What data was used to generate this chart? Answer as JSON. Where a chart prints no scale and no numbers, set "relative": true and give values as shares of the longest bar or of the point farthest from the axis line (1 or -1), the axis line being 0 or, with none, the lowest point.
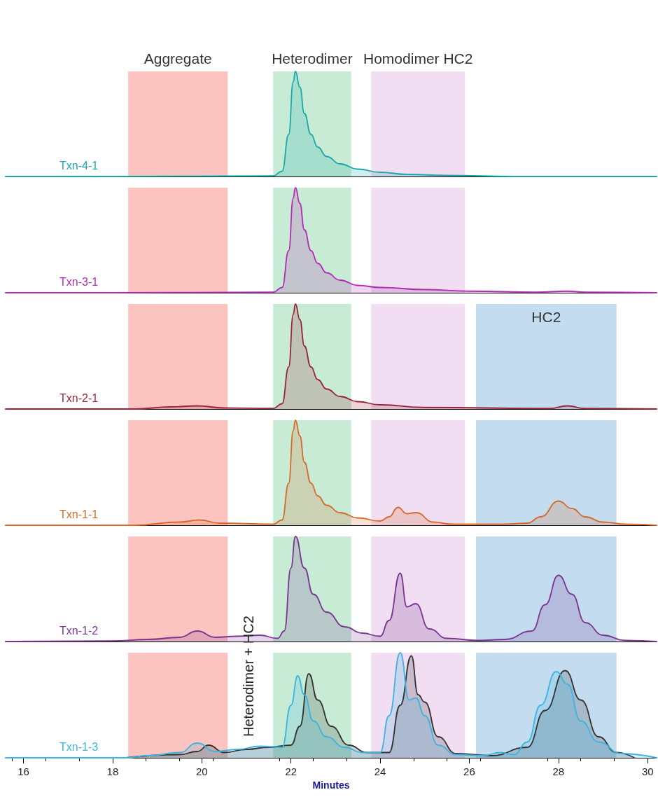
{
  "chart_data": [
    {
      "type": "area",
      "relative": true,
      "marker": "none",
      "xlim": [
        15.6,
        30.2
      ],
      "tick_labels": false,
      "bands": [
        {
          "axis": "x",
          "from": 18.35,
          "to": 20.58,
          "label": "Aggregate",
          "color": "#fbc4c0"
        },
        {
          "axis": "x",
          "from": 21.6,
          "to": 23.35,
          "label": "Heterodimer",
          "color": "#c8ebd6"
        },
        {
          "axis": "x",
          "from": 23.8,
          "to": 25.9,
          "label": "Homodimer HC2",
          "color": "#f1def2"
        }
      ],
      "series": [
        {
          "name": "Txn-4-1",
          "color": "#1aa8a8",
          "x": [
            15.6,
            18,
            21.6,
            21.8,
            21.95,
            22.05,
            22.1,
            22.2,
            22.3,
            22.45,
            22.6,
            22.8,
            23.1,
            23.5,
            24,
            24.6,
            25.5,
            27,
            30.2
          ],
          "values": [
            0,
            0,
            0.005,
            0.05,
            0.4,
            0.9,
            1,
            0.85,
            0.6,
            0.4,
            0.28,
            0.19,
            0.12,
            0.07,
            0.04,
            0.02,
            0.01,
            0,
            0
          ]
        }
      ]
    },
    {
      "type": "area",
      "relative": true,
      "marker": "none",
      "xlim": [
        15.6,
        30.2
      ],
      "tick_labels": false,
      "bands": [
        {
          "axis": "x",
          "from": 18.35,
          "to": 20.58,
          "label": null,
          "color": "#fbc4c0"
        },
        {
          "axis": "x",
          "from": 21.6,
          "to": 23.35,
          "label": null,
          "color": "#c8ebd6"
        },
        {
          "axis": "x",
          "from": 23.8,
          "to": 25.9,
          "label": null,
          "color": "#f1def2"
        }
      ],
      "series": [
        {
          "name": "Txn-3-1",
          "color": "#b42ab4",
          "x": [
            15.6,
            18,
            21.6,
            21.8,
            21.95,
            22.05,
            22.1,
            22.2,
            22.3,
            22.45,
            22.6,
            22.8,
            23.1,
            23.5,
            24,
            25,
            26,
            27.5,
            28.2,
            28.6,
            30.2
          ],
          "values": [
            0,
            0,
            0.005,
            0.05,
            0.4,
            0.9,
            1,
            0.85,
            0.6,
            0.4,
            0.28,
            0.19,
            0.12,
            0.07,
            0.05,
            0.03,
            0.015,
            0.005,
            0.015,
            0.005,
            0
          ]
        }
      ]
    },
    {
      "type": "area",
      "relative": true,
      "marker": "none",
      "xlim": [
        15.6,
        30.2
      ],
      "tick_labels": false,
      "bands": [
        {
          "axis": "x",
          "from": 18.35,
          "to": 20.58,
          "label": null,
          "color": "#fbc4c0"
        },
        {
          "axis": "x",
          "from": 21.6,
          "to": 23.35,
          "label": null,
          "color": "#c8ebd6"
        },
        {
          "axis": "x",
          "from": 23.8,
          "to": 25.9,
          "label": null,
          "color": "#f1def2"
        },
        {
          "axis": "x",
          "from": 26.15,
          "to": 29.3,
          "label": "HC2",
          "color": "#c3dcf0"
        }
      ],
      "series": [
        {
          "name": "Txn-2-1",
          "color": "#9a2438",
          "x": [
            15.6,
            18.5,
            19.3,
            19.9,
            20.5,
            21.6,
            21.8,
            21.95,
            22.05,
            22.1,
            22.2,
            22.3,
            22.45,
            22.6,
            22.8,
            23.1,
            23.5,
            24,
            25,
            27.8,
            28.2,
            28.6,
            30.2
          ],
          "values": [
            0,
            0,
            0.02,
            0.03,
            0.01,
            0.005,
            0.05,
            0.4,
            0.9,
            1,
            0.85,
            0.6,
            0.4,
            0.28,
            0.19,
            0.12,
            0.07,
            0.04,
            0.015,
            0.005,
            0.03,
            0.005,
            0
          ]
        }
      ]
    },
    {
      "type": "area",
      "relative": true,
      "marker": "none",
      "xlim": [
        15.6,
        30.2
      ],
      "tick_labels": false,
      "bands": [
        {
          "axis": "x",
          "from": 18.35,
          "to": 20.58,
          "label": null,
          "color": "#fbc4c0"
        },
        {
          "axis": "x",
          "from": 21.6,
          "to": 23.35,
          "label": null,
          "color": "#c8ebd6"
        },
        {
          "axis": "x",
          "from": 23.8,
          "to": 25.9,
          "label": null,
          "color": "#f1def2"
        },
        {
          "axis": "x",
          "from": 26.15,
          "to": 29.3,
          "label": null,
          "color": "#c3dcf0"
        }
      ],
      "series": [
        {
          "name": "Txn-1-1",
          "color": "#d8692a",
          "x": [
            15.6,
            18.5,
            19.5,
            19.95,
            20.4,
            21.6,
            21.8,
            21.95,
            22.05,
            22.1,
            22.2,
            22.3,
            22.45,
            22.6,
            22.8,
            23.1,
            23.5,
            24,
            24.2,
            24.4,
            24.6,
            24.8,
            25.2,
            25.6,
            26.8,
            27.3,
            27.6,
            28,
            28.3,
            28.6,
            29,
            29.5,
            30.2
          ],
          "values": [
            0,
            0,
            0.03,
            0.05,
            0.02,
            0.01,
            0.05,
            0.4,
            0.9,
            1,
            0.85,
            0.6,
            0.4,
            0.28,
            0.19,
            0.12,
            0.07,
            0.04,
            0.08,
            0.17,
            0.11,
            0.12,
            0.03,
            0.01,
            0.01,
            0.02,
            0.08,
            0.23,
            0.16,
            0.08,
            0.03,
            0.01,
            0
          ]
        }
      ]
    },
    {
      "type": "area",
      "relative": true,
      "marker": "none",
      "xlim": [
        15.6,
        30.2
      ],
      "tick_labels": false,
      "bands": [
        {
          "axis": "x",
          "from": 18.35,
          "to": 20.58,
          "label": null,
          "color": "#fbc4c0"
        },
        {
          "axis": "x",
          "from": 21.6,
          "to": 23.35,
          "label": null,
          "color": "#c8ebd6"
        },
        {
          "axis": "x",
          "from": 23.8,
          "to": 25.9,
          "label": null,
          "color": "#f1def2"
        },
        {
          "axis": "x",
          "from": 26.15,
          "to": 29.3,
          "label": null,
          "color": "#c3dcf0"
        }
      ],
      "series": [
        {
          "name": "Txn-1-2",
          "color": "#7a3590",
          "x": [
            15.6,
            18,
            18.8,
            19.5,
            19.9,
            20.3,
            20.8,
            21.3,
            21.7,
            21.85,
            22,
            22.1,
            22.3,
            22.5,
            22.8,
            23.2,
            23.6,
            24,
            24.2,
            24.45,
            24.6,
            24.8,
            25.1,
            25.5,
            26.2,
            26.8,
            27.4,
            27.7,
            28,
            28.3,
            28.6,
            29,
            29.5,
            30.2
          ],
          "values": [
            0,
            0.005,
            0.02,
            0.04,
            0.1,
            0.04,
            0.05,
            0.06,
            0.03,
            0.1,
            0.7,
            1,
            0.7,
            0.45,
            0.28,
            0.14,
            0.08,
            0.05,
            0.2,
            0.65,
            0.33,
            0.36,
            0.12,
            0.03,
            0.01,
            0.02,
            0.1,
            0.35,
            0.63,
            0.45,
            0.18,
            0.06,
            0.01,
            0
          ]
        }
      ]
    },
    {
      "type": "area",
      "relative": true,
      "marker": "none",
      "xlim": [
        15.6,
        30.2
      ],
      "xticks": [
        16,
        18,
        20,
        22,
        24,
        26,
        28,
        30
      ],
      "tick_labels": "x",
      "xlabel": "Minutes",
      "annotations": [
        "Heterodimer + HC2"
      ],
      "bands": [
        {
          "axis": "x",
          "from": 18.35,
          "to": 20.58,
          "label": null,
          "color": "#fbc4c0"
        },
        {
          "axis": "x",
          "from": 21.6,
          "to": 23.35,
          "label": null,
          "color": "#c8ebd6"
        },
        {
          "axis": "x",
          "from": 23.8,
          "to": 25.9,
          "label": null,
          "color": "#f1def2"
        },
        {
          "axis": "x",
          "from": 26.15,
          "to": 29.3,
          "label": null,
          "color": "#c3dcf0"
        }
      ],
      "series": [
        {
          "color": "#333333",
          "x": [
            18.3,
            19.5,
            19.9,
            20.15,
            20.5,
            21,
            21.5,
            22,
            22.2,
            22.4,
            22.6,
            22.9,
            23.3,
            23.7,
            24.2,
            24.45,
            24.7,
            24.85,
            25,
            25.3,
            25.7,
            26.5,
            27.3,
            27.7,
            28.15,
            28.5,
            28.9,
            29.3,
            29.7
          ],
          "values": [
            0,
            0.03,
            0.06,
            0.12,
            0.05,
            0.08,
            0.1,
            0.12,
            0.3,
            0.8,
            0.55,
            0.3,
            0.12,
            0.05,
            0.05,
            0.5,
            0.97,
            0.6,
            0.53,
            0.2,
            0.04,
            0.02,
            0.1,
            0.45,
            0.83,
            0.55,
            0.2,
            0.05,
            0
          ]
        },
        {
          "name": "Txn-1-3",
          "color": "#3db4e0",
          "x": [
            15.6,
            18.3,
            18.8,
            19.5,
            19.9,
            20.3,
            20.8,
            21.3,
            21.8,
            22,
            22.15,
            22.3,
            22.5,
            22.8,
            23.2,
            23.6,
            24,
            24.2,
            24.45,
            24.65,
            24.8,
            25,
            25.3,
            25.7,
            26.3,
            26.7,
            27,
            27.3,
            27.6,
            27.95,
            28.2,
            28.5,
            28.9,
            29.4,
            30.2
          ],
          "values": [
            0,
            0,
            0.02,
            0.05,
            0.14,
            0.06,
            0.08,
            0.11,
            0.1,
            0.5,
            0.78,
            0.6,
            0.35,
            0.2,
            0.1,
            0.05,
            0.05,
            0.4,
            1,
            0.55,
            0.57,
            0.4,
            0.12,
            0.03,
            0.02,
            0.05,
            0.03,
            0.15,
            0.5,
            0.82,
            0.7,
            0.35,
            0.15,
            0.04,
            0
          ]
        }
      ]
    }
  ]
}
